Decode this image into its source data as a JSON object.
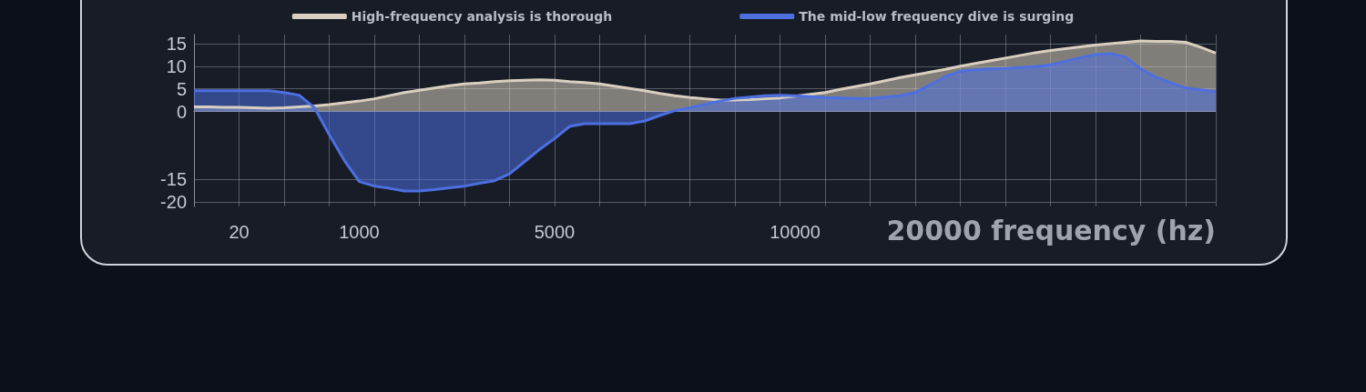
{
  "chart_data": {
    "type": "area",
    "xlabel": "20000 frequency (hz)",
    "categories": [
      null,
      null,
      null,
      "20",
      null,
      null,
      null,
      null,
      null,
      null,
      null,
      "1000",
      null,
      null,
      null,
      null,
      null,
      null,
      null,
      null,
      null,
      null,
      null,
      null,
      "5000",
      null,
      null,
      null,
      null,
      null,
      null,
      null,
      null,
      null,
      null,
      null,
      null,
      null,
      null,
      null,
      "10000",
      null,
      null,
      null,
      null,
      null,
      null,
      null,
      null,
      null,
      null,
      null,
      null,
      null,
      null,
      null,
      null,
      null,
      null,
      null,
      null,
      null,
      null,
      null,
      null,
      null,
      null,
      null,
      null
    ],
    "series": [
      {
        "name": "High-frequency analysis is thorough",
        "color": "#d9cfbf",
        "values": [
          1,
          1.0,
          0.9,
          0.9,
          0.8,
          0.7,
          0.8,
          1.0,
          1.2,
          1.5,
          1.9,
          2.3,
          2.8,
          3.5,
          4.2,
          4.7,
          5.2,
          5.7,
          6.1,
          6.3,
          6.6,
          6.8,
          6.9,
          7.0,
          6.9,
          6.6,
          6.4,
          6.1,
          5.6,
          5.1,
          4.6,
          4.0,
          3.5,
          3.1,
          2.8,
          2.5,
          2.5,
          2.6,
          2.8,
          3.0,
          3.4,
          3.8,
          4.2,
          4.9,
          5.5,
          6.1,
          6.8,
          7.5,
          8.1,
          8.7,
          9.3,
          10.0,
          10.6,
          11.2,
          11.8,
          12.4,
          13.0,
          13.5,
          13.9,
          14.3,
          14.7,
          15.0,
          15.3,
          15.6,
          15.5,
          15.5,
          15.3,
          14.2,
          12.9
        ]
      },
      {
        "name": "The mid-low frequency dive is surging",
        "color": "#4d6fe0",
        "values": [
          4.6,
          4.6,
          4.6,
          4.6,
          4.6,
          4.6,
          4.2,
          3.6,
          0.9,
          -5.1,
          -10.8,
          -15.5,
          -16.5,
          -17.0,
          -17.6,
          -17.6,
          -17.3,
          -16.9,
          -16.5,
          -15.9,
          -15.3,
          -13.8,
          -11.1,
          -8.4,
          -6.0,
          -3.3,
          -2.7,
          -2.7,
          -2.7,
          -2.7,
          -2.1,
          -0.9,
          0.2,
          0.8,
          1.6,
          2.3,
          2.9,
          3.2,
          3.5,
          3.6,
          3.5,
          3.3,
          3.1,
          3.0,
          2.9,
          2.9,
          3.2,
          3.5,
          4.2,
          5.9,
          7.7,
          8.9,
          9.2,
          9.4,
          9.5,
          9.7,
          9.9,
          10.3,
          11.1,
          11.9,
          12.6,
          12.8,
          12.0,
          9.4,
          7.6,
          6.3,
          5.2,
          4.8,
          4.4
        ]
      }
    ],
    "ylim": [
      -21,
      17
    ],
    "yticks": [
      15,
      10,
      5,
      0,
      -15,
      -20
    ],
    "grid": true,
    "legend": "top"
  }
}
